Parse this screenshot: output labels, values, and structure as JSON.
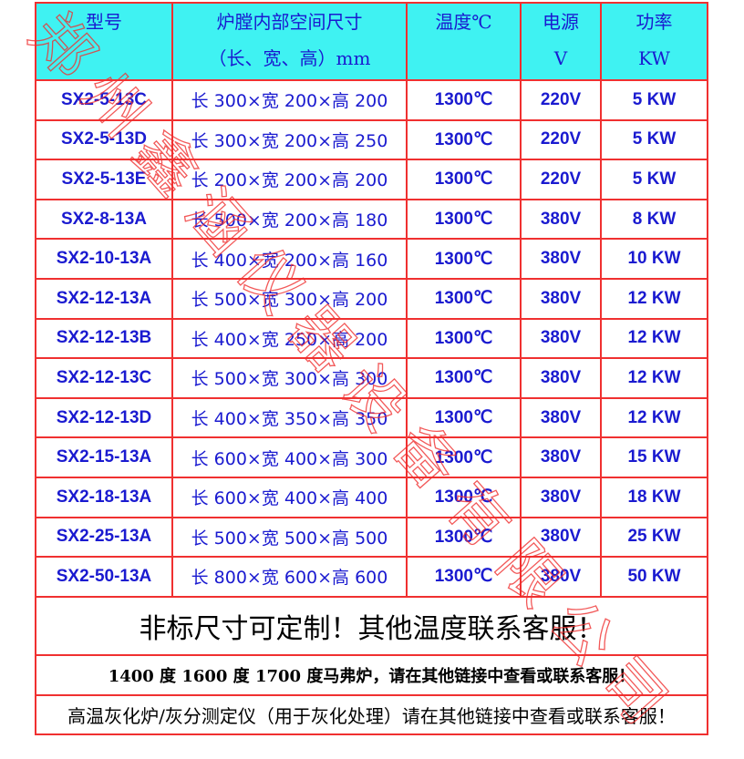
{
  "header": {
    "model": "型号",
    "size": [
      "炉膛内部空间尺寸",
      "（长、宽、高）mm"
    ],
    "temp": "温度℃",
    "power": [
      "电源",
      "V"
    ],
    "kw": [
      "功率",
      "KW"
    ]
  },
  "rows": [
    [
      "SX2-5-13C",
      "长 300×宽 200×高 200",
      "1300℃",
      "220V",
      "5 KW"
    ],
    [
      "SX2-5-13D",
      "长 300×宽 200×高 250",
      "1300℃",
      "220V",
      "5 KW"
    ],
    [
      "SX2-5-13E",
      "长 200×宽 200×高 200",
      "1300℃",
      "220V",
      "5 KW"
    ],
    [
      "SX2-8-13A",
      "长 500×宽 200×高 180",
      "1300℃",
      "380V",
      "8 KW"
    ],
    [
      "SX2-10-13A",
      "长 400×宽 200×高 160",
      "1300℃",
      "380V",
      "10 KW"
    ],
    [
      "SX2-12-13A",
      "长 500×宽 300×高 200",
      "1300℃",
      "380V",
      "12 KW"
    ],
    [
      "SX2-12-13B",
      "长 400×宽 250×高 200",
      "1300℃",
      "380V",
      "12 KW"
    ],
    [
      "SX2-12-13C",
      "长 500×宽 300×高 300",
      "1300℃",
      "380V",
      "12 KW"
    ],
    [
      "SX2-12-13D",
      "长 400×宽 350×高 350",
      "1300℃",
      "380V",
      "12 KW"
    ],
    [
      "SX2-15-13A",
      "长 600×宽 400×高 300",
      "1300℃",
      "380V",
      "15 KW"
    ],
    [
      "SX2-18-13A",
      "长 600×宽 400×高 400",
      "1300℃",
      "380V",
      "18 KW"
    ],
    [
      "SX2-25-13A",
      "长 500×宽 500×高 500",
      "1300℃",
      "380V",
      "25 KW"
    ],
    [
      "SX2-50-13A",
      "长 800×宽 600×高 600",
      "1300℃",
      "380V",
      "50 KW"
    ]
  ],
  "notes": [
    "非标尺寸可定制！其他温度联系客服！",
    "1400 度 1600 度 1700 度马弗炉，请在其他链接中查看或联系客服！",
    "高温灰化炉/灰分测定仪（用于灰化处理）请在其他链接中查看或联系客服！"
  ],
  "watermark": "郑州鑫涵仪器设备有限公司"
}
